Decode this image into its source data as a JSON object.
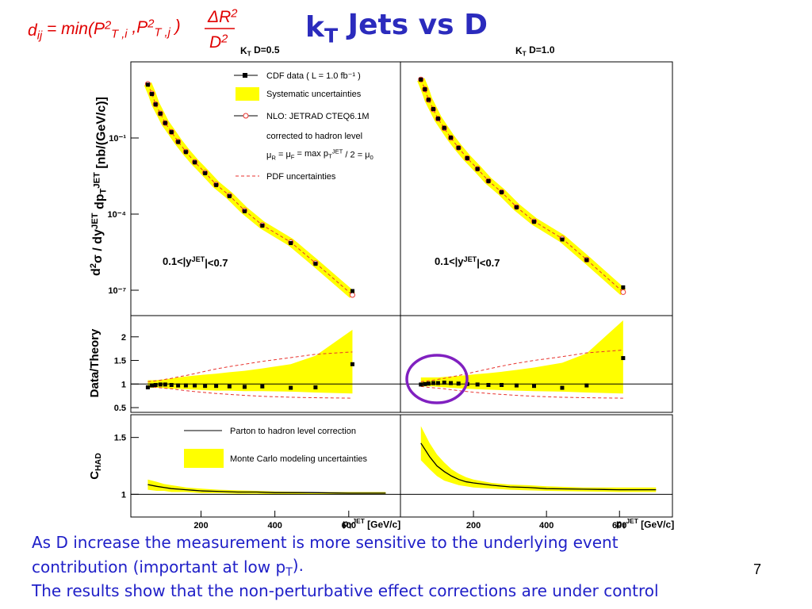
{
  "slide": {
    "title": [
      "k",
      "T",
      " Jets vs D"
    ],
    "formula": [
      "d",
      "ij",
      " = min(",
      "P",
      "2",
      "T ,i",
      " ,",
      "P",
      "2",
      "T ,j",
      " )"
    ],
    "formula_num": [
      "ΔR",
      "2"
    ],
    "formula_den": [
      "D",
      "2"
    ],
    "note_1": "As D increase the measurement is more sensitive to the underlying event",
    "note_2": [
      "contribution (important at low p",
      "T",
      ")."
    ],
    "note_3": "The results show that the non-perturbative effect corrections are under control",
    "page_number": "7"
  },
  "chart_data": [
    {
      "type": "scatter",
      "panel_title": [
        "K",
        "T",
        " D=0.5"
      ],
      "ylabel": [
        "d",
        "2",
        "σ / dy",
        "JET",
        " dp",
        "T",
        "JET",
        " [nb/(GeV/c)]"
      ],
      "annotation": [
        "0.1<|y",
        "JET",
        "|<0.7"
      ],
      "xlim": [
        10,
        740
      ],
      "ylim": [
        1e-08,
        100
      ],
      "log_y": true,
      "yticks": [
        {
          "value": 0.1,
          "label": "10⁻¹"
        },
        {
          "value": 0.0001,
          "label": "10⁻⁴"
        },
        {
          "value": 1e-07,
          "label": "10⁻⁷"
        }
      ],
      "x": [
        56,
        67,
        77,
        90,
        103,
        120,
        138,
        159,
        183,
        211,
        241,
        277,
        318,
        366,
        443,
        510,
        610
      ],
      "series": [
        {
          "name": "CDF data ( L = 1.0 fb⁻¹ )",
          "color": "#000000",
          "values": [
            12.6,
            5.4,
            2.1,
            0.91,
            0.39,
            0.17,
            0.07,
            0.028,
            0.011,
            0.0041,
            0.0014,
            0.00051,
            0.00013,
            3.5e-05,
            7.2e-06,
            1.1e-06,
            9.3e-08
          ]
        },
        {
          "name": "NLO: JETRAD CTEQ6.1M",
          "color": "#e8322d",
          "values": [
            13.5,
            5.6,
            2.14,
            0.92,
            0.39,
            0.173,
            0.072,
            0.029,
            0.0113,
            0.0043,
            0.00146,
            0.00054,
            0.000138,
            3.7e-05,
            7.8e-06,
            1.18e-06,
            6.5e-08
          ]
        }
      ],
      "band_color": "#ffff00",
      "legend_notes": [
        "Systematic uncertainties",
        "corrected to hadron level"
      ],
      "scale_note": [
        "μ",
        "R",
        " = μ",
        "F",
        " = max p",
        "T",
        "JET",
        " / 2 = μ",
        "0"
      ],
      "pdf_note": "PDF uncertainties"
    },
    {
      "type": "scatter",
      "panel_title": [
        "K",
        "T",
        " D=1.0"
      ],
      "annotation": [
        "0.1<|y",
        "JET",
        "|<0.7"
      ],
      "xlim": [
        0,
        745
      ],
      "ylim": [
        1e-08,
        100
      ],
      "log_y": true,
      "x": [
        56,
        67,
        77,
        90,
        103,
        120,
        138,
        159,
        183,
        211,
        241,
        277,
        318,
        366,
        443,
        510,
        610
      ],
      "series": [
        {
          "color": "#000000",
          "values": [
            20,
            8.3,
            3.2,
            1.38,
            0.58,
            0.25,
            0.103,
            0.041,
            0.016,
            0.006,
            0.002,
            0.00073,
            0.000185,
            5e-05,
            1e-05,
            1.55e-06,
            1.3e-07
          ]
        },
        {
          "color": "#e8322d",
          "values": [
            20.2,
            8.3,
            3.17,
            1.35,
            0.57,
            0.243,
            0.101,
            0.041,
            0.016,
            0.0061,
            0.00204,
            0.00074,
            0.00019,
            5.2e-05,
            1.09e-05,
            1.6e-06,
            8.4e-08
          ]
        }
      ],
      "band_color": "#ffff00"
    },
    {
      "type": "band",
      "ylabel": "Data/Theory",
      "xlim": [
        10,
        740
      ],
      "ylim": [
        0.4,
        2.45
      ],
      "yticks": [
        0.5,
        1,
        1.5,
        2
      ],
      "x": [
        56,
        67,
        77,
        90,
        103,
        120,
        138,
        159,
        183,
        211,
        241,
        277,
        318,
        366,
        443,
        510,
        610
      ],
      "values": [
        0.93,
        0.97,
        0.98,
        0.99,
        0.99,
        0.98,
        0.97,
        0.97,
        0.97,
        0.96,
        0.96,
        0.95,
        0.94,
        0.95,
        0.92,
        0.93,
        1.42
      ],
      "color": "#000000",
      "band": {
        "color": "#ffff00",
        "low": [
          0.92,
          0.92,
          0.92,
          0.92,
          0.91,
          0.9,
          0.9,
          0.89,
          0.88,
          0.87,
          0.86,
          0.86,
          0.85,
          0.85,
          0.84,
          0.82,
          0.8
        ],
        "high": [
          1.08,
          1.08,
          1.08,
          1.09,
          1.1,
          1.12,
          1.14,
          1.16,
          1.18,
          1.2,
          1.22,
          1.25,
          1.28,
          1.33,
          1.42,
          1.6,
          2.15
        ]
      },
      "pdf": {
        "color": "#e8322d",
        "low": [
          0.95,
          0.94,
          0.93,
          0.92,
          0.91,
          0.9,
          0.88,
          0.86,
          0.84,
          0.82,
          0.8,
          0.78,
          0.76,
          0.74,
          0.72,
          0.71,
          0.7
        ],
        "high": [
          1.05,
          1.06,
          1.07,
          1.08,
          1.1,
          1.12,
          1.15,
          1.18,
          1.22,
          1.27,
          1.32,
          1.37,
          1.42,
          1.48,
          1.56,
          1.63,
          1.68
        ]
      }
    },
    {
      "type": "band",
      "xlim": [
        0,
        745
      ],
      "ylim": [
        0.4,
        2.45
      ],
      "x": [
        56,
        67,
        77,
        90,
        103,
        120,
        138,
        159,
        183,
        211,
        241,
        277,
        318,
        366,
        443,
        510,
        610
      ],
      "values": [
        0.99,
        1.0,
        1.01,
        1.02,
        1.02,
        1.03,
        1.02,
        1.01,
        1.0,
        0.99,
        0.98,
        0.98,
        0.97,
        0.96,
        0.92,
        0.97,
        1.55
      ],
      "color": "#000000",
      "band": {
        "color": "#ffff00",
        "low": [
          0.94,
          0.95,
          0.95,
          0.95,
          0.94,
          0.93,
          0.92,
          0.91,
          0.9,
          0.89,
          0.88,
          0.87,
          0.86,
          0.85,
          0.84,
          0.82,
          0.8
        ],
        "high": [
          1.14,
          1.14,
          1.14,
          1.14,
          1.14,
          1.15,
          1.16,
          1.17,
          1.19,
          1.21,
          1.23,
          1.26,
          1.3,
          1.35,
          1.45,
          1.65,
          2.35
        ]
      },
      "pdf": {
        "color": "#e8322d",
        "low": [
          0.95,
          0.94,
          0.93,
          0.92,
          0.91,
          0.9,
          0.88,
          0.86,
          0.84,
          0.82,
          0.8,
          0.78,
          0.76,
          0.74,
          0.72,
          0.71,
          0.7
        ],
        "high": [
          1.05,
          1.06,
          1.07,
          1.08,
          1.1,
          1.12,
          1.15,
          1.18,
          1.22,
          1.27,
          1.32,
          1.38,
          1.44,
          1.5,
          1.58,
          1.66,
          1.72
        ]
      }
    },
    {
      "type": "line",
      "ylabel": [
        "C",
        "HAD"
      ],
      "xlabel": [
        "p",
        "T",
        "JET",
        " [GeV/c]"
      ],
      "xlim": [
        10,
        740
      ],
      "ylim": [
        0.8,
        1.7
      ],
      "yticks": [
        1,
        1.5
      ],
      "xticks": [
        200,
        400,
        600
      ],
      "x": [
        56,
        80,
        100,
        120,
        140,
        160,
        180,
        200,
        250,
        300,
        350,
        400,
        500,
        600,
        700
      ],
      "series": [
        {
          "name": "Parton to hadron level correction",
          "color": "#000000",
          "values": [
            1.085,
            1.07,
            1.06,
            1.05,
            1.045,
            1.04,
            1.035,
            1.03,
            1.025,
            1.02,
            1.02,
            1.015,
            1.015,
            1.01,
            1.01
          ]
        }
      ],
      "band": {
        "name": "Monte Carlo modeling uncertainties",
        "color": "#ffff00",
        "low": [
          1.04,
          1.03,
          1.03,
          1.02,
          1.02,
          1.02,
          1.015,
          1.01,
          1.01,
          1.005,
          1.005,
          1.0,
          1.0,
          1.0,
          1.0
        ],
        "high": [
          1.13,
          1.11,
          1.09,
          1.08,
          1.07,
          1.06,
          1.055,
          1.05,
          1.04,
          1.035,
          1.03,
          1.025,
          1.02,
          1.02,
          1.02
        ]
      }
    },
    {
      "type": "line",
      "xlabel": [
        "p",
        "T",
        "JET",
        " [GeV/c]"
      ],
      "xlim": [
        0,
        745
      ],
      "ylim": [
        0.8,
        1.7
      ],
      "xticks": [
        200,
        400,
        600
      ],
      "x": [
        56,
        80,
        100,
        120,
        140,
        160,
        180,
        200,
        250,
        300,
        350,
        400,
        500,
        600,
        700
      ],
      "series": [
        {
          "color": "#000000",
          "values": [
            1.45,
            1.33,
            1.25,
            1.2,
            1.16,
            1.13,
            1.11,
            1.1,
            1.08,
            1.065,
            1.06,
            1.05,
            1.045,
            1.04,
            1.04
          ]
        }
      ],
      "band": {
        "color": "#ffff00",
        "low": [
          1.3,
          1.22,
          1.16,
          1.12,
          1.1,
          1.08,
          1.07,
          1.06,
          1.05,
          1.04,
          1.035,
          1.03,
          1.025,
          1.02,
          1.02
        ],
        "high": [
          1.6,
          1.45,
          1.35,
          1.28,
          1.22,
          1.18,
          1.15,
          1.13,
          1.1,
          1.085,
          1.08,
          1.07,
          1.06,
          1.06,
          1.06
        ]
      }
    }
  ]
}
